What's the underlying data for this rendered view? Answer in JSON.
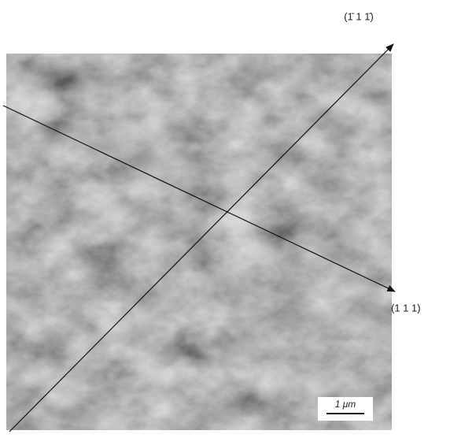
{
  "labels": {
    "direction_upper": "(1̄ 1 1̄)",
    "direction_right": "(1 1 1)"
  },
  "scale_bar": {
    "label": "1 μm"
  }
}
